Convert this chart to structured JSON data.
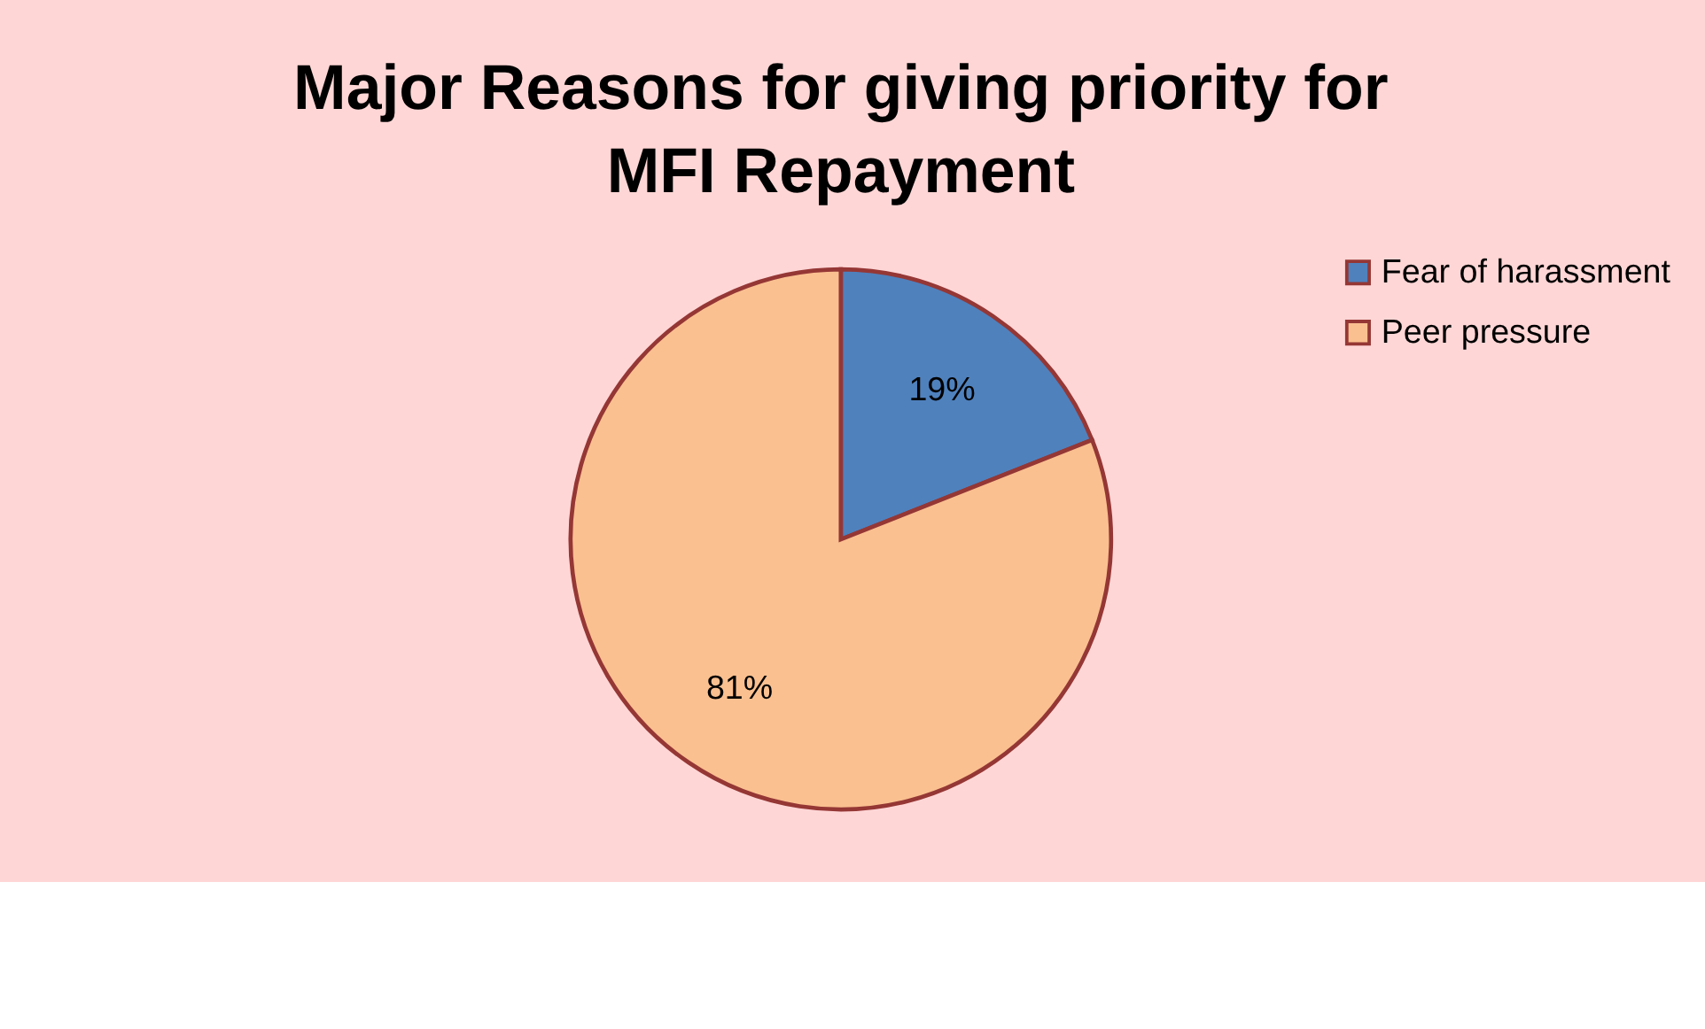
{
  "chart_data": {
    "type": "pie",
    "title": [
      "Major Reasons for giving priority for",
      "MFI Repayment"
    ],
    "categories": [
      "Fear of harassment",
      "Peer pressure"
    ],
    "values": [
      19,
      81
    ],
    "colors": [
      "#4f81bd",
      "#fac090"
    ],
    "value_labels": [
      "19%",
      "81%"
    ],
    "legend": "right"
  }
}
